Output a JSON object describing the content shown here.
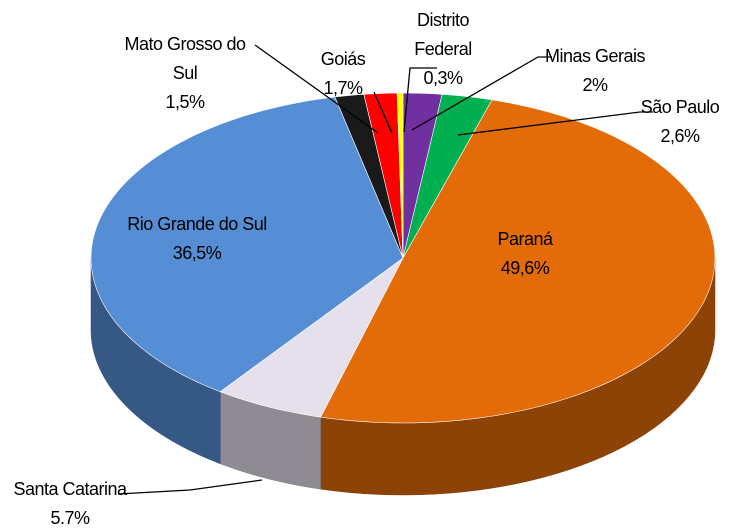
{
  "chart_data": {
    "type": "pie",
    "categories": [
      "Minas Gerais",
      "São Paulo",
      "Paraná",
      "Santa Catarina",
      "Rio Grande do Sul",
      "Mato Grosso do Sul",
      "Goiás",
      "Distrito Federal"
    ],
    "values": [
      2,
      2.6,
      49.6,
      5.7,
      36.5,
      1.5,
      1.7,
      0.3
    ],
    "value_labels": [
      "2%",
      "2,6%",
      "49,6%",
      "5.7%",
      "36,5%",
      "1,5%",
      "1,7%",
      "0,3%"
    ],
    "colors": [
      "#7030a0",
      "#00b050",
      "#e36c09",
      "#e6e0ec",
      "#558ed5",
      "#1a1a1a",
      "#ff0000",
      "#ffff00"
    ]
  }
}
